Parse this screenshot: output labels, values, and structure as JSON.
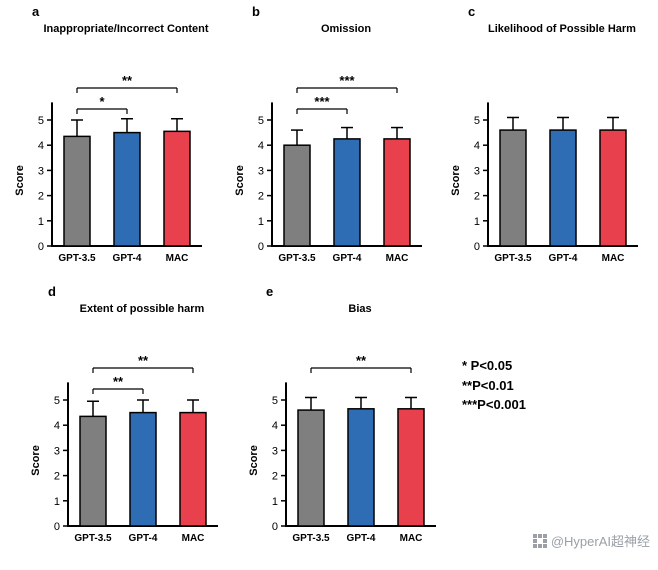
{
  "colors": {
    "gray": "#7f7f7f",
    "blue": "#2e6db4",
    "red": "#e8414d",
    "bar_border": "#000000",
    "watermark": "#9aa0a6"
  },
  "legend": {
    "lines": [
      "* P<0.05",
      "**P<0.01",
      "***P<0.001"
    ]
  },
  "watermark": {
    "text": "@HyperAI超神经"
  },
  "chart_data": [
    {
      "type": "bar",
      "panel": "a",
      "title": "Inappropriate/Incorrect Content",
      "ylabel": "Score",
      "ylim": [
        0,
        5.5
      ],
      "yticks": [
        0,
        1,
        2,
        3,
        4,
        5
      ],
      "categories": [
        "GPT-3.5",
        "GPT-4",
        "MAC"
      ],
      "values": [
        4.35,
        4.5,
        4.55
      ],
      "errors": [
        0.65,
        0.55,
        0.5
      ],
      "bar_colors": [
        "gray",
        "blue",
        "red"
      ],
      "significance": [
        {
          "from": 0,
          "to": 1,
          "label": "*",
          "level": 1
        },
        {
          "from": 0,
          "to": 2,
          "label": "**",
          "level": 2
        }
      ]
    },
    {
      "type": "bar",
      "panel": "b",
      "title": "Omission",
      "ylabel": "Score",
      "ylim": [
        0,
        5.5
      ],
      "yticks": [
        0,
        1,
        2,
        3,
        4,
        5
      ],
      "categories": [
        "GPT-3.5",
        "GPT-4",
        "MAC"
      ],
      "values": [
        4.0,
        4.25,
        4.25
      ],
      "errors": [
        0.6,
        0.45,
        0.45
      ],
      "bar_colors": [
        "gray",
        "blue",
        "red"
      ],
      "significance": [
        {
          "from": 0,
          "to": 1,
          "label": "***",
          "level": 1
        },
        {
          "from": 0,
          "to": 2,
          "label": "***",
          "level": 2
        }
      ]
    },
    {
      "type": "bar",
      "panel": "c",
      "title": "Likelihood of Possible Harm",
      "ylabel": "Score",
      "ylim": [
        0,
        5.5
      ],
      "yticks": [
        0,
        1,
        2,
        3,
        4,
        5
      ],
      "categories": [
        "GPT-3.5",
        "GPT-4",
        "MAC"
      ],
      "values": [
        4.6,
        4.6,
        4.6
      ],
      "errors": [
        0.5,
        0.5,
        0.5
      ],
      "bar_colors": [
        "gray",
        "blue",
        "red"
      ],
      "significance": []
    },
    {
      "type": "bar",
      "panel": "d",
      "title": "Extent of possible harm",
      "ylabel": "Score",
      "ylim": [
        0,
        5.5
      ],
      "yticks": [
        0,
        1,
        2,
        3,
        4,
        5
      ],
      "categories": [
        "GPT-3.5",
        "GPT-4",
        "MAC"
      ],
      "values": [
        4.35,
        4.5,
        4.5
      ],
      "errors": [
        0.6,
        0.5,
        0.5
      ],
      "bar_colors": [
        "gray",
        "blue",
        "red"
      ],
      "significance": [
        {
          "from": 0,
          "to": 1,
          "label": "**",
          "level": 1
        },
        {
          "from": 0,
          "to": 2,
          "label": "**",
          "level": 2
        }
      ]
    },
    {
      "type": "bar",
      "panel": "e",
      "title": "Bias",
      "ylabel": "Score",
      "ylim": [
        0,
        5.5
      ],
      "yticks": [
        0,
        1,
        2,
        3,
        4,
        5
      ],
      "categories": [
        "GPT-3.5",
        "GPT-4",
        "MAC"
      ],
      "values": [
        4.6,
        4.65,
        4.65
      ],
      "errors": [
        0.5,
        0.45,
        0.45
      ],
      "bar_colors": [
        "gray",
        "blue",
        "red"
      ],
      "significance": [
        {
          "from": 0,
          "to": 2,
          "label": "**",
          "level": 2
        }
      ]
    }
  ]
}
